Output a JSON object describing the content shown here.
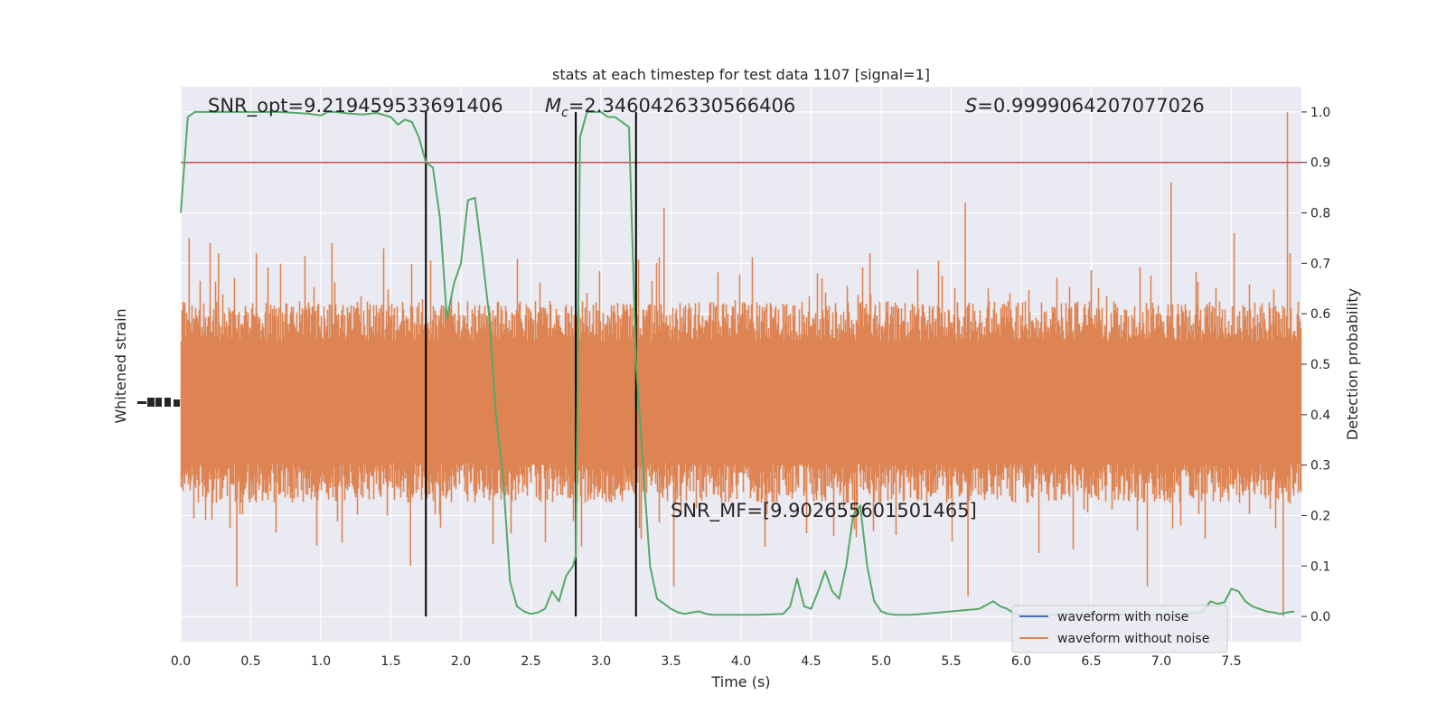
{
  "chart_data": {
    "type": "line",
    "title": "stats at each timestep for test data 1107 [signal=1]",
    "xlabel": "Time (s)",
    "ylabel_left": "Whitened strain",
    "ylabel_right": "Detection probability",
    "xlim": [
      0,
      8
    ],
    "ylim_right": [
      -0.05,
      1.05
    ],
    "x_ticks": [
      0.0,
      0.5,
      1.0,
      1.5,
      2.0,
      2.5,
      3.0,
      3.5,
      4.0,
      4.5,
      5.0,
      5.5,
      6.0,
      6.5,
      7.0,
      7.5
    ],
    "x_tick_labels": [
      "0.0",
      "0.5",
      "1.0",
      "1.5",
      "2.0",
      "2.5",
      "3.0",
      "3.5",
      "4.0",
      "4.5",
      "5.0",
      "5.5",
      "6.0",
      "6.5",
      "7.0",
      "7.5"
    ],
    "y_right_ticks": [
      0.0,
      0.1,
      0.2,
      0.3,
      0.4,
      0.5,
      0.6,
      0.7,
      0.8,
      0.9,
      1.0
    ],
    "y_right_tick_labels": [
      "0.0",
      "0.1",
      "0.2",
      "0.3",
      "0.4",
      "0.5",
      "0.6",
      "0.7",
      "0.8",
      "0.9",
      "1.0"
    ],
    "grid": true,
    "annotations": {
      "snr_opt": "SNR_opt=9.219459533691406",
      "mc_symbol": "M",
      "mc_subscript": "c",
      "mc_value": "=2.3460426330566406",
      "s_symbol": "S",
      "s_value": "=0.9999064207077026",
      "snr_mf": "SNR_MF=[9.902655601501465]"
    },
    "threshold": {
      "value": 0.9,
      "color": "#c44e52"
    },
    "vertical_lines_x": [
      1.75,
      2.82,
      3.25
    ],
    "legend": {
      "placement": "lower-right",
      "entries": [
        {
          "label": "waveform with noise",
          "color": "#4c72b0"
        },
        {
          "label": "waveform without noise",
          "color": "#dd8452"
        }
      ]
    },
    "strain_color": "#dd8452",
    "strain_band_right_axis": {
      "center": 0.425,
      "core_halfwidth": 0.12,
      "typical_peak_halfwidth": 0.2,
      "max_peak_halfwidth": 0.575
    },
    "strain_spikes": [
      {
        "x": 0.06,
        "y": 0.75
      },
      {
        "x": 0.21,
        "y": 0.74
      },
      {
        "x": 0.27,
        "y": 0.72
      },
      {
        "x": 0.4,
        "y": 0.06
      },
      {
        "x": 0.54,
        "y": 0.72
      },
      {
        "x": 1.08,
        "y": 0.74
      },
      {
        "x": 1.64,
        "y": 0.1
      },
      {
        "x": 3.45,
        "y": 0.81
      },
      {
        "x": 3.52,
        "y": 0.06
      },
      {
        "x": 4.92,
        "y": 0.72
      },
      {
        "x": 5.6,
        "y": 0.82
      },
      {
        "x": 5.62,
        "y": 0.04
      },
      {
        "x": 6.9,
        "y": 0.06
      },
      {
        "x": 7.07,
        "y": 0.86
      },
      {
        "x": 7.52,
        "y": 0.76
      },
      {
        "x": 7.87,
        "y": 0.0
      },
      {
        "x": 7.9,
        "y": 1.0
      }
    ],
    "series": [
      {
        "name": "detection probability",
        "color": "#55a868",
        "x": [
          0.0,
          0.05,
          0.1,
          0.2,
          0.3,
          0.5,
          0.7,
          0.9,
          1.0,
          1.05,
          1.1,
          1.2,
          1.3,
          1.4,
          1.5,
          1.55,
          1.6,
          1.65,
          1.7,
          1.75,
          1.8,
          1.85,
          1.9,
          1.95,
          2.0,
          2.05,
          2.1,
          2.15,
          2.2,
          2.25,
          2.3,
          2.35,
          2.4,
          2.45,
          2.5,
          2.55,
          2.6,
          2.65,
          2.7,
          2.75,
          2.8,
          2.82,
          2.85,
          2.9,
          2.95,
          3.0,
          3.05,
          3.1,
          3.15,
          3.2,
          3.25,
          3.3,
          3.35,
          3.4,
          3.45,
          3.5,
          3.55,
          3.6,
          3.65,
          3.7,
          3.75,
          3.8,
          3.9,
          4.0,
          4.1,
          4.2,
          4.3,
          4.35,
          4.4,
          4.45,
          4.5,
          4.55,
          4.6,
          4.65,
          4.7,
          4.75,
          4.8,
          4.85,
          4.9,
          4.95,
          5.0,
          5.05,
          5.1,
          5.2,
          5.3,
          5.5,
          5.7,
          5.8,
          5.85,
          5.9,
          5.95,
          6.0,
          6.1,
          6.3,
          6.6,
          7.0,
          7.2,
          7.3,
          7.35,
          7.4,
          7.45,
          7.5,
          7.55,
          7.6,
          7.65,
          7.7,
          7.75,
          7.8,
          7.85,
          7.9,
          7.95
        ],
        "values": [
          0.8,
          0.99,
          1.0,
          1.0,
          1.0,
          1.0,
          1.0,
          0.997,
          0.993,
          1.0,
          1.0,
          0.997,
          0.995,
          0.998,
          0.99,
          0.975,
          0.985,
          0.98,
          0.95,
          0.9,
          0.89,
          0.79,
          0.59,
          0.66,
          0.7,
          0.825,
          0.83,
          0.72,
          0.6,
          0.4,
          0.28,
          0.07,
          0.02,
          0.01,
          0.005,
          0.008,
          0.015,
          0.05,
          0.03,
          0.08,
          0.1,
          0.12,
          0.95,
          1.0,
          1.0,
          1.0,
          0.99,
          0.99,
          0.98,
          0.97,
          0.5,
          0.3,
          0.1,
          0.035,
          0.025,
          0.015,
          0.008,
          0.005,
          0.008,
          0.01,
          0.005,
          0.003,
          0.003,
          0.003,
          0.003,
          0.004,
          0.005,
          0.02,
          0.075,
          0.02,
          0.015,
          0.05,
          0.09,
          0.05,
          0.035,
          0.1,
          0.2,
          0.22,
          0.1,
          0.03,
          0.01,
          0.005,
          0.003,
          0.003,
          0.005,
          0.01,
          0.015,
          0.03,
          0.02,
          0.015,
          0.005,
          0.003,
          0.003,
          0.003,
          0.003,
          0.003,
          0.005,
          0.01,
          0.03,
          0.025,
          0.028,
          0.055,
          0.05,
          0.03,
          0.02,
          0.015,
          0.01,
          0.008,
          0.005,
          0.008,
          0.01
        ]
      }
    ]
  }
}
